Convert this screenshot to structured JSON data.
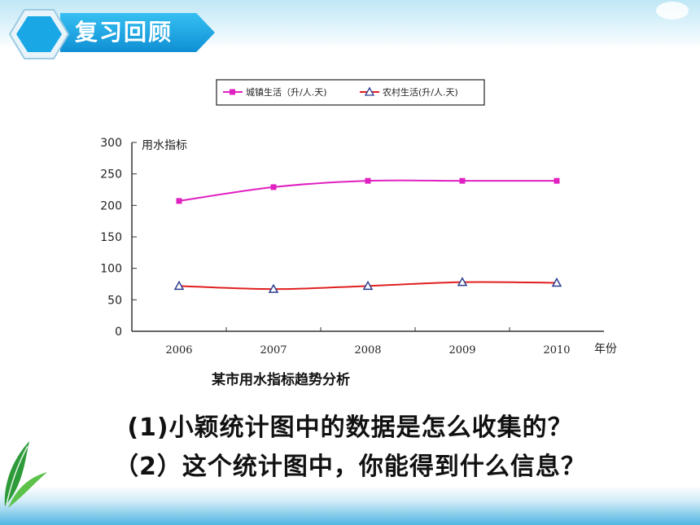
{
  "header": {
    "title": "复习回顾"
  },
  "chart_data": {
    "type": "line",
    "ylabel": "用水指标",
    "xlabel": "年份",
    "categories": [
      "2006",
      "2007",
      "2008",
      "2009",
      "2010"
    ],
    "ylim": [
      0,
      300
    ],
    "yticks": [
      0,
      50,
      100,
      150,
      200,
      250,
      300
    ],
    "grid": false,
    "legend_position": "top",
    "series": [
      {
        "name": "城镇生活（升/人.天)",
        "values": [
          207,
          229,
          239,
          239,
          239
        ],
        "color": "#e020c0",
        "marker": "square"
      },
      {
        "name": "农村生活(升/人.天)",
        "values": [
          72,
          67,
          72,
          78,
          77
        ],
        "color": "#e02020",
        "marker": "triangle"
      }
    ]
  },
  "caption": "某市用水指标趋势分析",
  "questions": {
    "q1": "(1)小颖统计图中的数据是怎么收集的？",
    "q2": "（2）这个统计图中，你能得到什么信息？"
  }
}
